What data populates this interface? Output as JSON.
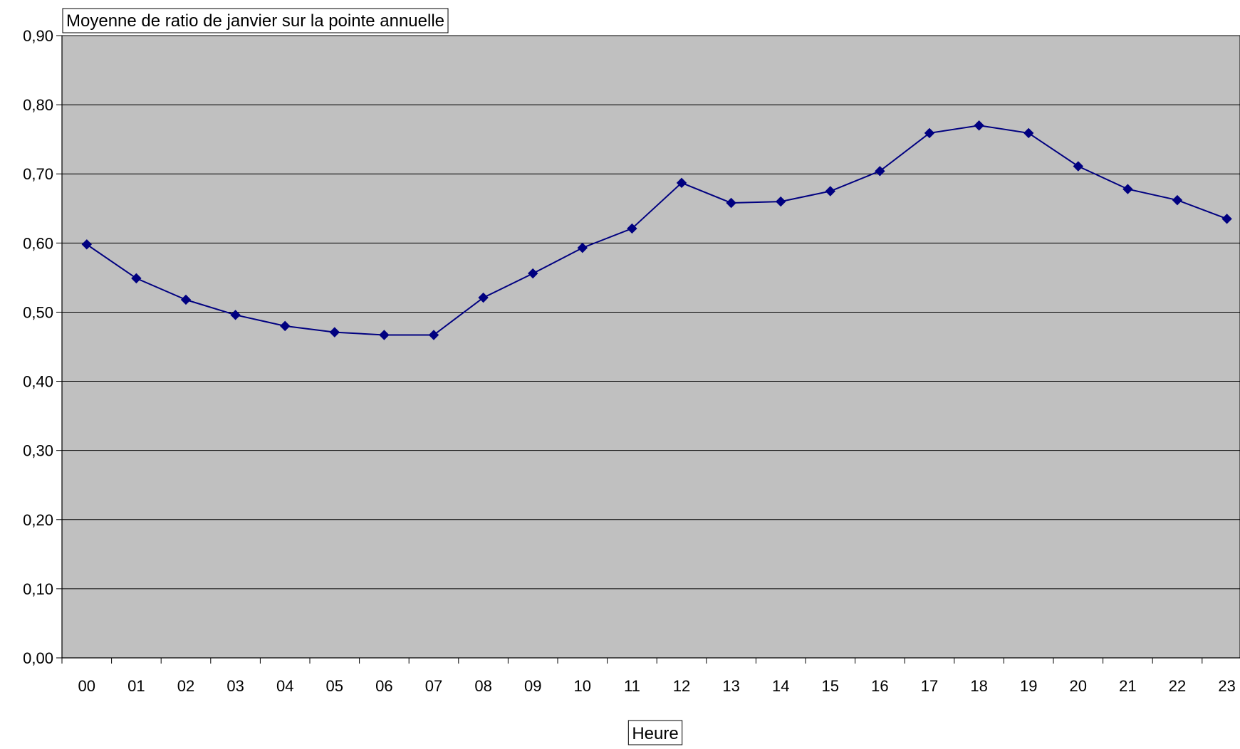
{
  "chart_data": {
    "type": "line",
    "title": "Moyenne de ratio de janvier sur la pointe annuelle",
    "xlabel": "Heure",
    "ylabel": "",
    "categories": [
      "00",
      "01",
      "02",
      "03",
      "04",
      "05",
      "06",
      "07",
      "08",
      "09",
      "10",
      "11",
      "12",
      "13",
      "14",
      "15",
      "16",
      "17",
      "18",
      "19",
      "20",
      "21",
      "22",
      "23"
    ],
    "series": [
      {
        "values": [
          0.598,
          0.549,
          0.518,
          0.496,
          0.48,
          0.471,
          0.467,
          0.467,
          0.521,
          0.556,
          0.593,
          0.621,
          0.687,
          0.658,
          0.66,
          0.675,
          0.704,
          0.759,
          0.77,
          0.759,
          0.711,
          0.678,
          0.662,
          0.635
        ],
        "color": "#000080",
        "marker": "diamond"
      }
    ],
    "ylim": [
      0,
      0.9
    ],
    "y_ticks": [
      "0,00",
      "0,10",
      "0,20",
      "0,30",
      "0,40",
      "0,50",
      "0,60",
      "0,70",
      "0,80",
      "0,90"
    ],
    "grid": "horizontal",
    "plot_background": "#C0C0C0",
    "legend": "none"
  }
}
